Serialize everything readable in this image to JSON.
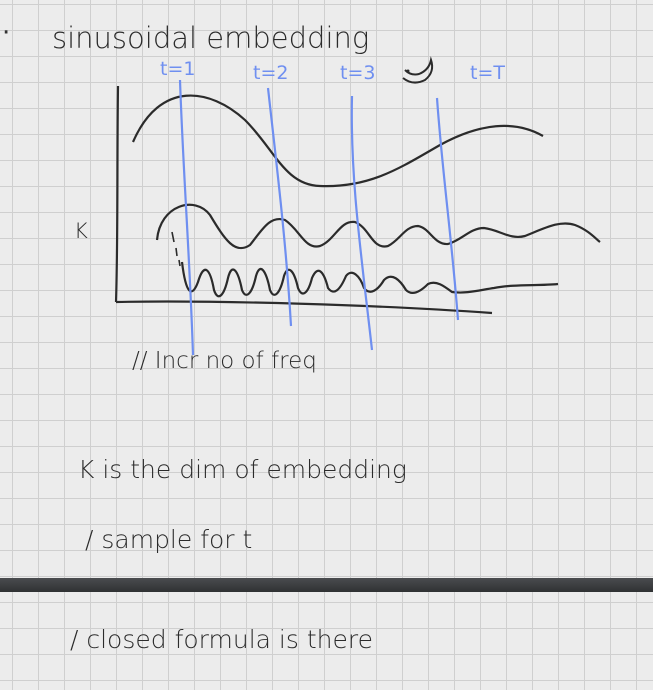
{
  "notes": {
    "heading": "sinusoidal embedding",
    "time_labels": [
      "t=1",
      "t=2",
      "t=3",
      "t=T"
    ],
    "k_label": "K",
    "freq_note": "// Incr no of freq",
    "line_k_dim": "K is the dim of embedding",
    "line_sample": "/ sample for t",
    "line_closed": "/ closed formula is there"
  },
  "colors": {
    "ink": "#2b2b2b",
    "blue_ink": "#6f8ff0",
    "paper": "#ececec",
    "grid": "#cfcfcf",
    "divider": "#3a3c3f"
  }
}
